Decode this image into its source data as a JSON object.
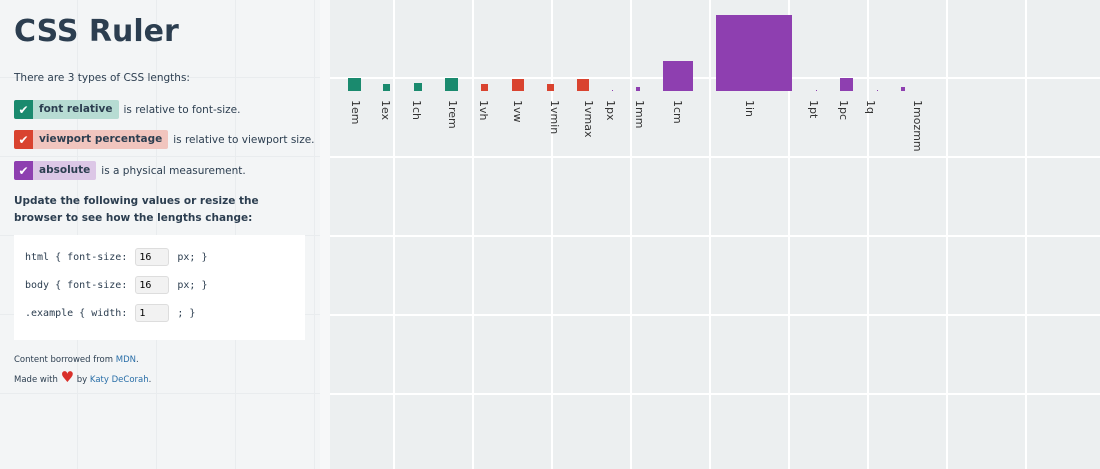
{
  "title": "CSS Ruler",
  "intro": "There are 3 types of CSS lengths:",
  "legend": [
    {
      "tag": "font relative",
      "text": "is relative to font-size."
    },
    {
      "tag": "viewport percentage",
      "text": "is relative to viewport size."
    },
    {
      "tag": "absolute",
      "text": "is a physical measurement."
    }
  ],
  "instructions": "Update the following values or resize the browser to see how the lengths change:",
  "code": [
    {
      "before": "html { font-size:",
      "value": "16",
      "after": "px; }"
    },
    {
      "before": "body { font-size:",
      "value": "16",
      "after": "px; }"
    },
    {
      "before": ".example { width:",
      "value": "1",
      "after": "; }"
    }
  ],
  "footer": {
    "line1": "Content borrowed from",
    "mdn": "MDN",
    "dot1": ".",
    "made": "Made with",
    "by": "by",
    "author": "Katy DeCorah",
    "dot2": "."
  },
  "units": [
    "1em",
    "1ex",
    "1ch",
    "1rem",
    "1vh",
    "1vw",
    "1vmin",
    "1vmax",
    "1px",
    "1mm",
    "1cm",
    "1in",
    "1pt",
    "1pc",
    "1q",
    "1mozmm"
  ]
}
